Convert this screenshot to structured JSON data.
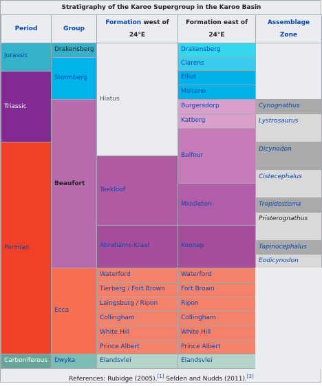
{
  "caption": "Stratigraphy of the Karoo Supergroup in the Karoo Basin",
  "headers": {
    "period": "Period",
    "group": "Group",
    "formation_west_link": "Formation",
    "formation_west_rest_1": " west of",
    "formation_west_rest_2": "24°E",
    "formation_east_line_1": "Formation east of",
    "formation_east_line_2": "24°E",
    "assemblage_line_1": "Assemblage",
    "assemblage_line_2": "Zone"
  },
  "periods": [
    "Jurassic",
    "Triassic",
    "Permian",
    "Carboniferous"
  ],
  "groups": [
    "Drakensberg",
    "Stormberg",
    "Beaufort",
    "Ecca",
    "Dwyka"
  ],
  "formations_west": [
    "Hiatus",
    "Teekloof",
    "Abrahams-Kraal",
    "Waterford",
    "Tierberg / Fort Brown",
    "Laingsburg / Ripon",
    "Collingham",
    "White Hill",
    "Prince Albert",
    "Elandsvlei"
  ],
  "formations_east": [
    "Drakensberg",
    "Clarens",
    "Elliot",
    "Molteno",
    "Burgersdorp",
    "Katberg",
    "Balfour",
    "Middleton",
    "Koonap",
    "Waterford",
    "Fort Brown",
    "Ripon",
    "Collingham",
    "White Hill",
    "Prince Albert",
    "Elandsvlei"
  ],
  "assemblage_zones": [
    "Cynognathus",
    "Lystrosaurus",
    "Dicynodon",
    "Cistecephalus",
    "Tropidostoma",
    "Pristerognathus",
    "Tapinocephalus",
    "Eodicynodon"
  ],
  "references": {
    "prefix": "References: Rubidge (2005).",
    "ref1": "[1]",
    "middle": " Selden and Nudds (2011).",
    "ref2": "[2]"
  },
  "colors": {
    "jurassic": "#34b2c9",
    "triassic": "#812b92",
    "permian": "#f04028",
    "carboniferous": "#67a599",
    "group_blue": "#00b4eb",
    "beaufort": "#b86cae",
    "ecca": "#f66f50",
    "hiatus": "#eaecf0",
    "table_bg": "#eaecf0"
  }
}
